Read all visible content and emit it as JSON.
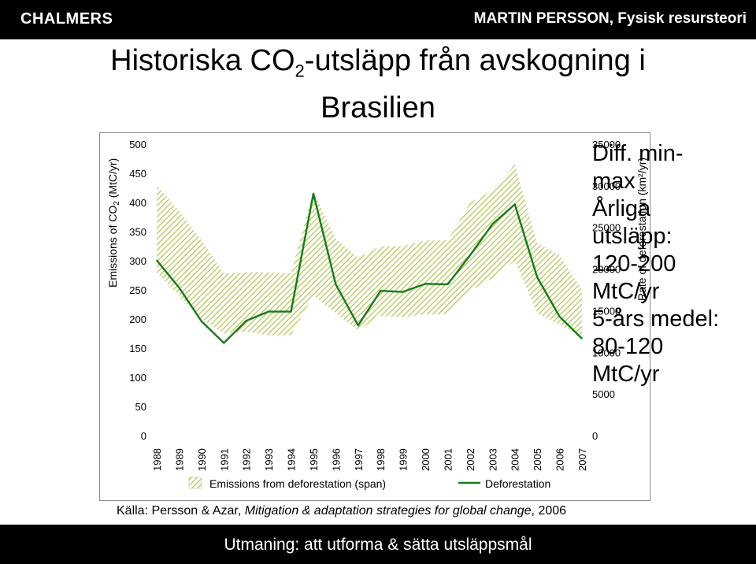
{
  "header": {
    "brand": "CHALMERS",
    "author": "MARTIN PERSSON, Fysisk resursteori"
  },
  "title": {
    "line1_pre": "Historiska CO",
    "line1_sub": "2",
    "line1_post": "-utsläpp från avskogning i",
    "line2": "Brasilien"
  },
  "note": {
    "line1": "Diff. min-",
    "line2": "max",
    "line3": "Årliga",
    "line4": "utsläpp:",
    "line5": "120-200",
    "line6": "MtC/yr",
    "line7": "5-års medel:",
    "line8": "80-120",
    "line9": "MtC/yr"
  },
  "source": {
    "prefix": "Källa: Persson & Azar, ",
    "italic": "Mitigation & adaptation strategies for global change",
    "suffix": ", 2006"
  },
  "footer": {
    "text": "Utmaning: att utforma & sätta utsläppsmål"
  },
  "colors": {
    "line": "#1a7a1a",
    "band_stripe": "#b5c75a",
    "header_bg": "#000000"
  },
  "chart_data": {
    "type": "line",
    "x": [
      1988,
      1989,
      1990,
      1991,
      1992,
      1993,
      1994,
      1995,
      1996,
      1997,
      1998,
      1999,
      2000,
      2001,
      2002,
      2003,
      2004,
      2005,
      2006,
      2007
    ],
    "y_left_label_pre": "Emissions of CO",
    "y_left_label_sub": "2",
    "y_left_label_post": " (MtC/yr)",
    "y_right_label": "Rate of deforestation (km²/yr)",
    "ylim_left": [
      0,
      500
    ],
    "ylim_right": [
      0,
      35000
    ],
    "yticks_left": [
      0,
      50,
      100,
      150,
      200,
      250,
      300,
      350,
      400,
      450,
      500
    ],
    "yticks_right": [
      0,
      5000,
      10000,
      15000,
      20000,
      25000,
      30000,
      35000
    ],
    "series": [
      {
        "name": "Emissions from deforestation (span)",
        "type": "band",
        "axis": "left",
        "lower": [
          280,
          240,
          200,
          175,
          178,
          172,
          172,
          240,
          210,
          180,
          205,
          203,
          208,
          208,
          248,
          270,
          300,
          210,
          190,
          170
        ],
        "upper": [
          430,
          385,
          335,
          278,
          280,
          280,
          278,
          420,
          338,
          305,
          325,
          325,
          335,
          335,
          400,
          420,
          465,
          330,
          310,
          250
        ]
      },
      {
        "name": "Deforestation",
        "type": "line",
        "axis": "right",
        "values": [
          21050,
          17770,
          13730,
          11130,
          13786,
          14896,
          14896,
          29059,
          18161,
          13227,
          17383,
          17259,
          18226,
          18165,
          21651,
          25396,
          27772,
          19014,
          14286,
          11651
        ]
      }
    ],
    "legend": [
      "Emissions from deforestation (span)",
      "Deforestation"
    ],
    "legend_placement": "bottom"
  }
}
